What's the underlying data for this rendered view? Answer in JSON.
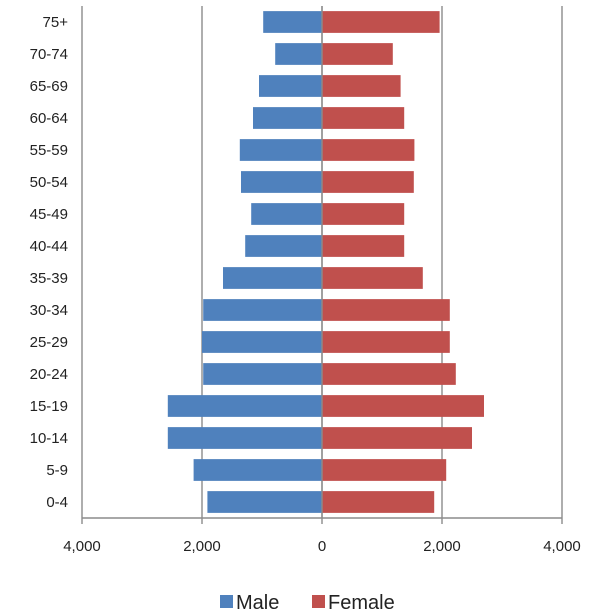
{
  "chart_data": {
    "type": "bar",
    "orientation": "horizontal",
    "layout": "population-pyramid",
    "categories": [
      "75+",
      "70-74",
      "65-69",
      "60-64",
      "55-59",
      "50-54",
      "45-49",
      "40-44",
      "35-39",
      "30-34",
      "25-29",
      "20-24",
      "15-19",
      "10-14",
      "5-9",
      "0-4"
    ],
    "series": [
      {
        "name": "Male",
        "color": "#4f81bd",
        "values": [
          980,
          780,
          1050,
          1150,
          1370,
          1350,
          1180,
          1280,
          1650,
          1980,
          2000,
          1980,
          2570,
          2570,
          2140,
          1910
        ]
      },
      {
        "name": "Female",
        "color": "#c0504d",
        "values": [
          1960,
          1180,
          1310,
          1370,
          1540,
          1530,
          1370,
          1370,
          1680,
          2130,
          2130,
          2230,
          2700,
          2500,
          2070,
          1870
        ]
      }
    ],
    "x_ticks": [
      "4,000",
      "2,000",
      "0",
      "2,000",
      "4,000"
    ],
    "xlim": [
      -4000,
      4000
    ],
    "grid": true,
    "legend_position": "bottom",
    "title": "",
    "xlabel": "",
    "ylabel": ""
  }
}
